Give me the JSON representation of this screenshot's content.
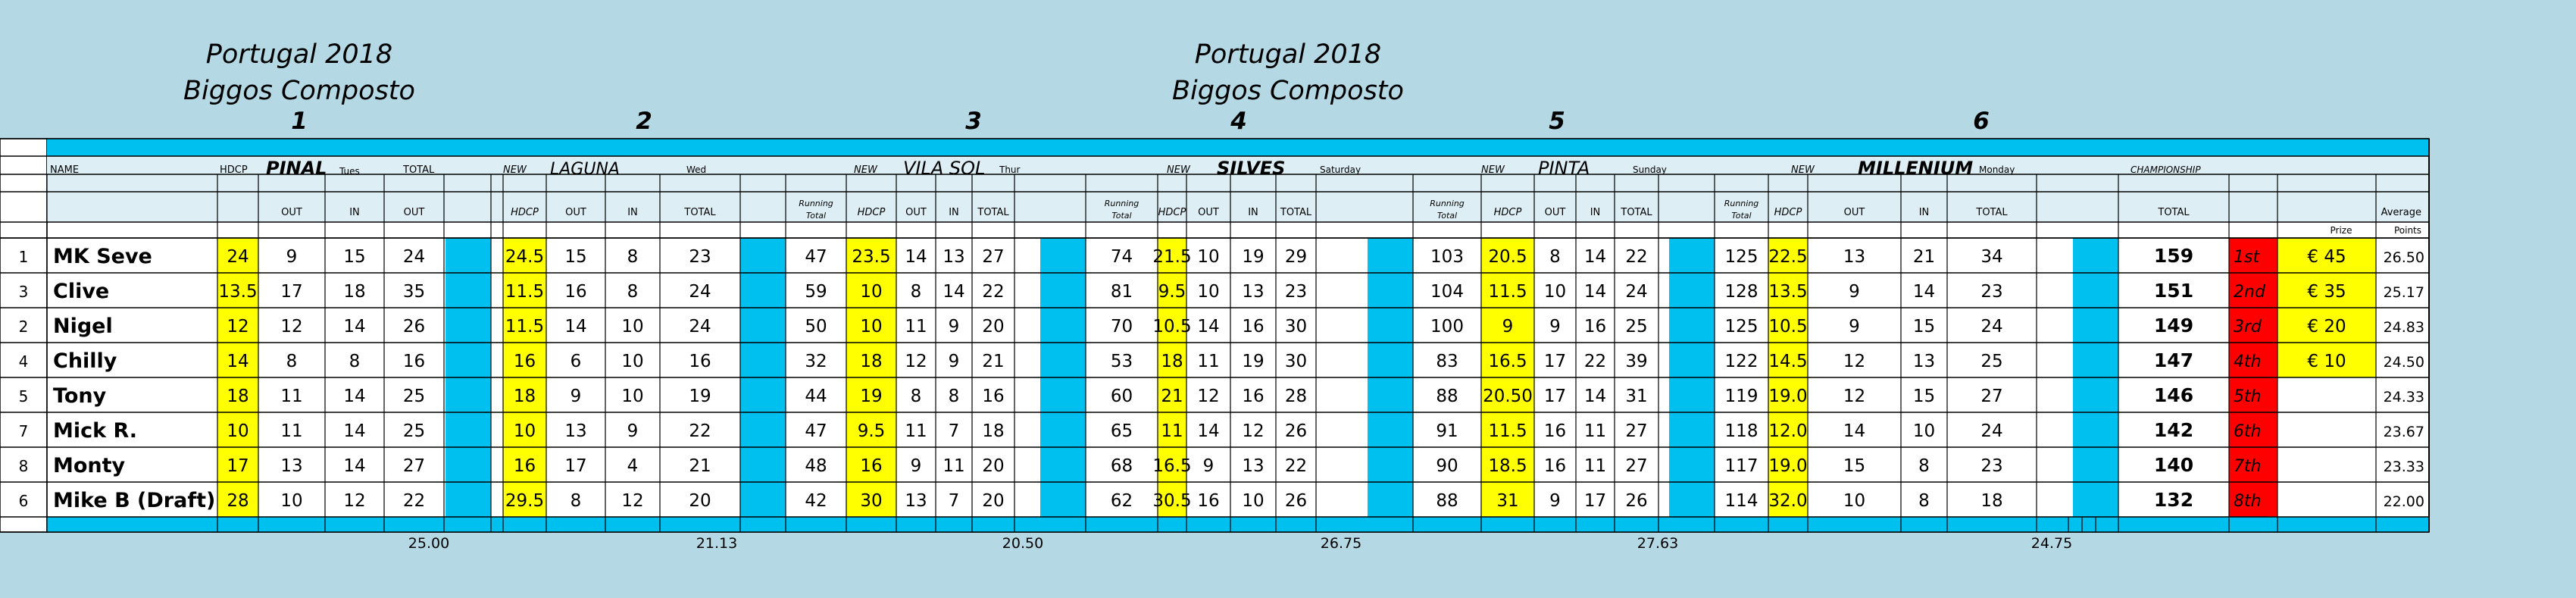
{
  "titles": [
    {
      "line1": "Portugal 2018",
      "line2": "Biggos Composto"
    },
    {
      "line1": "Portugal 2018",
      "line2": "Biggos Composto"
    }
  ],
  "round_numbers": [
    "1",
    "2",
    "3",
    "4",
    "5",
    "6"
  ],
  "header_row1": {
    "name": "NAME",
    "hdcp": "HDCP",
    "rounds": [
      {
        "new": "",
        "course": "PINAL",
        "day": "Tues",
        "total": "TOTAL"
      },
      {
        "new": "NEW",
        "course": "LAGUNA",
        "day": "Wed"
      },
      {
        "new": "NEW",
        "course": "VILA SOL",
        "day": "Thur"
      },
      {
        "new": "NEW",
        "course": "SILVES",
        "day": "Saturday"
      },
      {
        "new": "NEW",
        "course": "PINTA",
        "day": "Sunday"
      },
      {
        "new": "NEW",
        "course": "MILLENIUM",
        "day": "Monday"
      }
    ],
    "championship": "CHAMPIONSHIP"
  },
  "header_row2": {
    "out": "OUT",
    "in": "IN",
    "total": "TOTAL",
    "hdcp": "HDCP",
    "running_total_l1": "Running",
    "running_total_l2": "Total",
    "champ_total": "TOTAL",
    "average": "Average",
    "prize": "Prize",
    "points": "Points"
  },
  "players": [
    {
      "id": "1",
      "name": "MK Seve",
      "hdcp": "24",
      "r1": [
        "9",
        "15",
        "24"
      ],
      "r2": [
        "24.5",
        "15",
        "8",
        "23"
      ],
      "r3": [
        "47",
        "23.5",
        "14",
        "13",
        "27"
      ],
      "r4": [
        "74",
        "21.5",
        "10",
        "19",
        "29"
      ],
      "r5": [
        "103",
        "20.5",
        "8",
        "14",
        "22"
      ],
      "r6": [
        "125",
        "22.5",
        "13",
        "21",
        "34"
      ],
      "total": "159",
      "pos": "1st",
      "prize": "€ 45",
      "avg": "26.50"
    },
    {
      "id": "3",
      "name": "Clive",
      "hdcp": "13.5",
      "r1": [
        "17",
        "18",
        "35"
      ],
      "r2": [
        "11.5",
        "16",
        "8",
        "24"
      ],
      "r3": [
        "59",
        "10",
        "8",
        "14",
        "22"
      ],
      "r4": [
        "81",
        "9.5",
        "10",
        "13",
        "23"
      ],
      "r5": [
        "104",
        "11.5",
        "10",
        "14",
        "24"
      ],
      "r6": [
        "128",
        "13.5",
        "9",
        "14",
        "23"
      ],
      "total": "151",
      "pos": "2nd",
      "prize": "€ 35",
      "avg": "25.17"
    },
    {
      "id": "2",
      "name": "Nigel",
      "hdcp": "12",
      "r1": [
        "12",
        "14",
        "26"
      ],
      "r2": [
        "11.5",
        "14",
        "10",
        "24"
      ],
      "r3": [
        "50",
        "10",
        "11",
        "9",
        "20"
      ],
      "r4": [
        "70",
        "10.5",
        "14",
        "16",
        "30"
      ],
      "r5": [
        "100",
        "9",
        "9",
        "16",
        "25"
      ],
      "r6": [
        "125",
        "10.5",
        "9",
        "15",
        "24"
      ],
      "total": "149",
      "pos": "3rd",
      "prize": "€ 20",
      "avg": "24.83"
    },
    {
      "id": "4",
      "name": "Chilly",
      "hdcp": "14",
      "r1": [
        "8",
        "8",
        "16"
      ],
      "r2": [
        "16",
        "6",
        "10",
        "16"
      ],
      "r3": [
        "32",
        "18",
        "12",
        "9",
        "21"
      ],
      "r4": [
        "53",
        "18",
        "11",
        "19",
        "30"
      ],
      "r5": [
        "83",
        "16.5",
        "17",
        "22",
        "39"
      ],
      "r6": [
        "122",
        "14.5",
        "12",
        "13",
        "25"
      ],
      "total": "147",
      "pos": "4th",
      "prize": "€ 10",
      "avg": "24.50"
    },
    {
      "id": "5",
      "name": "Tony",
      "hdcp": "18",
      "r1": [
        "11",
        "14",
        "25"
      ],
      "r2": [
        "18",
        "9",
        "10",
        "19"
      ],
      "r3": [
        "44",
        "19",
        "8",
        "8",
        "16"
      ],
      "r4": [
        "60",
        "21",
        "12",
        "16",
        "28"
      ],
      "r5": [
        "88",
        "20.50",
        "17",
        "14",
        "31"
      ],
      "r6": [
        "119",
        "19.0",
        "12",
        "15",
        "27"
      ],
      "total": "146",
      "pos": "5th",
      "prize": "",
      "avg": "24.33"
    },
    {
      "id": "7",
      "name": "Mick R.",
      "hdcp": "10",
      "r1": [
        "11",
        "14",
        "25"
      ],
      "r2": [
        "10",
        "13",
        "9",
        "22"
      ],
      "r3": [
        "47",
        "9.5",
        "11",
        "7",
        "18"
      ],
      "r4": [
        "65",
        "11",
        "14",
        "12",
        "26"
      ],
      "r5": [
        "91",
        "11.5",
        "16",
        "11",
        "27"
      ],
      "r6": [
        "118",
        "12.0",
        "14",
        "10",
        "24"
      ],
      "total": "142",
      "pos": "6th",
      "prize": "",
      "avg": "23.67"
    },
    {
      "id": "8",
      "name": "Monty",
      "hdcp": "17",
      "r1": [
        "13",
        "14",
        "27"
      ],
      "r2": [
        "16",
        "17",
        "4",
        "21"
      ],
      "r3": [
        "48",
        "16",
        "9",
        "11",
        "20"
      ],
      "r4": [
        "68",
        "16.5",
        "9",
        "13",
        "22"
      ],
      "r5": [
        "90",
        "18.5",
        "16",
        "11",
        "27"
      ],
      "r6": [
        "117",
        "19.0",
        "15",
        "8",
        "23"
      ],
      "total": "140",
      "pos": "7th",
      "prize": "",
      "avg": "23.33"
    },
    {
      "id": "6",
      "name": "Mike B (Draft)",
      "hdcp": "28",
      "r1": [
        "10",
        "12",
        "22"
      ],
      "r2": [
        "29.5",
        "8",
        "12",
        "20"
      ],
      "r3": [
        "42",
        "30",
        "13",
        "7",
        "20"
      ],
      "r4": [
        "62",
        "30.5",
        "16",
        "10",
        "26"
      ],
      "r5": [
        "88",
        "31",
        "9",
        "17",
        "26"
      ],
      "r6": [
        "114",
        "32.0",
        "10",
        "8",
        "18"
      ],
      "total": "132",
      "pos": "8th",
      "prize": "",
      "avg": "22.00"
    }
  ],
  "round_averages": [
    "25.00",
    "21.13",
    "20.50",
    "26.75",
    "27.63",
    "24.75"
  ],
  "colors": {
    "background": "#b4d9e4",
    "cyan": "#00c0f0",
    "yellow": "#ffff00",
    "red": "#ff0000",
    "light_header": "#ddeef4",
    "white": "#ffffff"
  }
}
